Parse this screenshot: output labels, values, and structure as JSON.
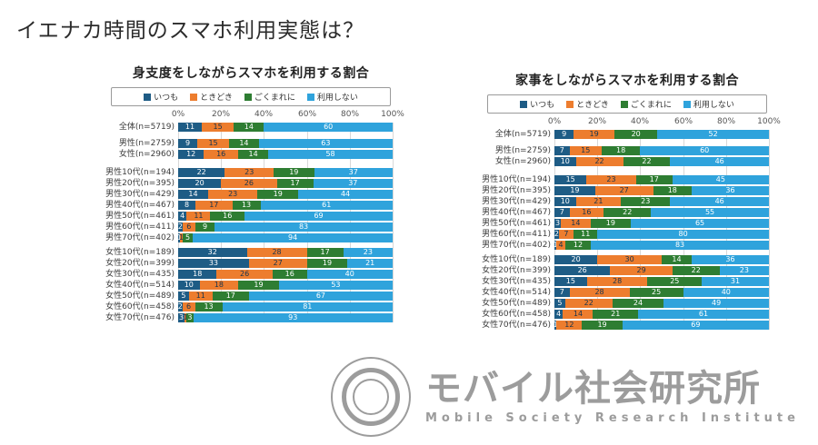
{
  "page": {
    "title": "イエナカ時間のスマホ利用実態は？"
  },
  "colors": {
    "always": "#1E5C85",
    "sometimes": "#ED7D2E",
    "rarely": "#2E7D32",
    "never": "#2FA3DC",
    "label_on_always": "#ffffff",
    "label_on_sometimes": "#17344f",
    "label_on_rarely": "#ffffff",
    "label_on_never": "#ffffff"
  },
  "axis_ticks": [
    "0%",
    "20%",
    "40%",
    "60%",
    "80%",
    "100%"
  ],
  "logo": {
    "jp": "モバイル社会研究所",
    "en": "Mobile Society Research Institute"
  },
  "chart_data": [
    {
      "type": "bar",
      "stacked": true,
      "orientation": "horizontal",
      "title": "身支度をしながらスマホを利用する割合",
      "xlim": [
        0,
        100
      ],
      "grid": true,
      "legend_position": "top",
      "categories": [
        "全体(n=5719)",
        "男性(n=2759)",
        "女性(n=2960)",
        "男性10代(n=194)",
        "男性20代(n=395)",
        "男性30代(n=429)",
        "男性40代(n=467)",
        "男性50代(n=461)",
        "男性60代(n=411)",
        "男性70代(n=402)",
        "女性10代(n=189)",
        "女性20代(n=399)",
        "女性30代(n=435)",
        "女性40代(n=514)",
        "女性50代(n=489)",
        "女性60代(n=458)",
        "女性70代(n=476)"
      ],
      "series": [
        {
          "name": "いつも",
          "values": [
            11,
            9,
            12,
            22,
            20,
            14,
            8,
            4,
            2,
            1,
            32,
            33,
            18,
            10,
            5,
            2,
            3
          ]
        },
        {
          "name": "ときどき",
          "values": [
            15,
            15,
            16,
            23,
            26,
            23,
            17,
            11,
            6,
            1,
            28,
            27,
            26,
            18,
            11,
            6,
            1
          ]
        },
        {
          "name": "ごくまれに",
          "values": [
            14,
            14,
            14,
            19,
            17,
            19,
            13,
            16,
            9,
            5,
            17,
            19,
            16,
            19,
            17,
            13,
            3
          ]
        },
        {
          "name": "利用しない",
          "values": [
            60,
            63,
            58,
            37,
            37,
            44,
            61,
            69,
            83,
            94,
            23,
            21,
            40,
            53,
            67,
            81,
            93
          ]
        }
      ]
    },
    {
      "type": "bar",
      "stacked": true,
      "orientation": "horizontal",
      "title": "家事をしながらスマホを利用する割合",
      "xlim": [
        0,
        100
      ],
      "grid": true,
      "legend_position": "top",
      "categories": [
        "全体(n=5719)",
        "男性(n=2759)",
        "女性(n=2960)",
        "男性10代(n=194)",
        "男性20代(n=395)",
        "男性30代(n=429)",
        "男性40代(n=467)",
        "男性50代(n=461)",
        "男性60代(n=411)",
        "男性70代(n=402)",
        "女性10代(n=189)",
        "女性20代(n=399)",
        "女性30代(n=435)",
        "女性40代(n=514)",
        "女性50代(n=489)",
        "女性60代(n=458)",
        "女性70代(n=476)"
      ],
      "series": [
        {
          "name": "いつも",
          "values": [
            9,
            7,
            10,
            15,
            19,
            10,
            7,
            3,
            2,
            1,
            20,
            26,
            15,
            7,
            5,
            4,
            1
          ]
        },
        {
          "name": "ときどき",
          "values": [
            19,
            15,
            22,
            23,
            27,
            21,
            16,
            14,
            7,
            4,
            30,
            29,
            28,
            28,
            22,
            14,
            12
          ]
        },
        {
          "name": "ごくまれに",
          "values": [
            20,
            18,
            22,
            17,
            18,
            23,
            22,
            19,
            11,
            12,
            14,
            22,
            25,
            25,
            24,
            21,
            19
          ]
        },
        {
          "name": "利用しない",
          "values": [
            52,
            60,
            46,
            45,
            36,
            46,
            55,
            65,
            80,
            83,
            36,
            23,
            31,
            40,
            49,
            61,
            69
          ]
        }
      ]
    }
  ]
}
